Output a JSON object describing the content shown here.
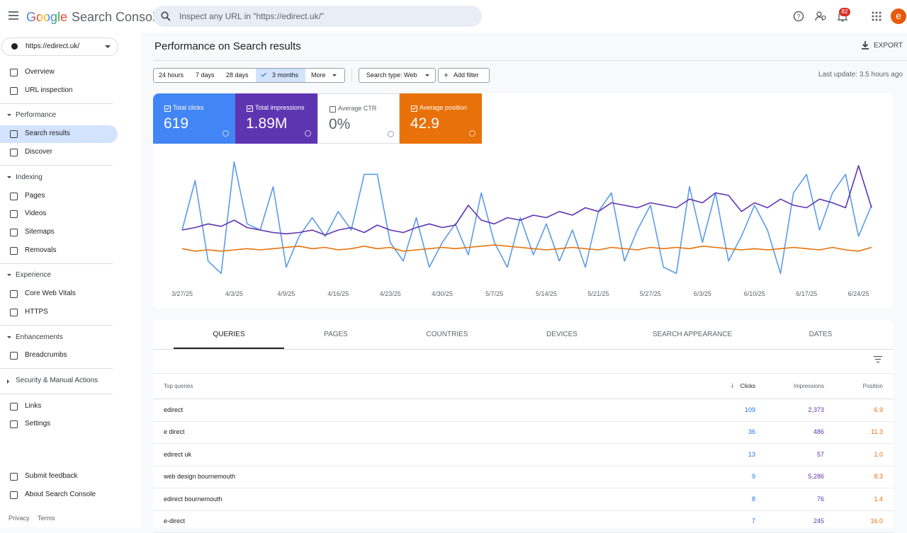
{
  "header": {
    "logo": "Google",
    "product": "Search Console",
    "search_placeholder": "Inspect any URL in \"https://edirect.uk/\"",
    "notification_count": "82",
    "avatar": "e"
  },
  "sidebar": {
    "property": "https://edirect.uk/",
    "items": [
      {
        "label": "Overview"
      },
      {
        "label": "URL inspection"
      },
      {
        "section": "Performance"
      },
      {
        "label": "Search results",
        "active": true
      },
      {
        "label": "Discover"
      },
      {
        "section": "Indexing"
      },
      {
        "label": "Pages"
      },
      {
        "label": "Videos"
      },
      {
        "label": "Sitemaps"
      },
      {
        "label": "Removals"
      },
      {
        "section": "Experience"
      },
      {
        "label": "Core Web Vitals"
      },
      {
        "label": "HTTPS"
      },
      {
        "section": "Enhancements"
      },
      {
        "label": "Breadcrumbs"
      },
      {
        "section": "Security & Manual Actions"
      },
      {
        "label": "Links"
      },
      {
        "label": "Settings"
      },
      {
        "label": "Submit feedback"
      },
      {
        "label": "About Search Console"
      }
    ],
    "footer": [
      "Privacy",
      "Terms"
    ]
  },
  "main": {
    "title": "Performance on Search results",
    "export": "EXPORT",
    "date_ranges": [
      "24 hours",
      "7 days",
      "28 days",
      "3 months",
      "More"
    ],
    "selected_range": 3,
    "filters": [
      "Search type: Web",
      "Add filter"
    ],
    "last_update": "Last update: 3.5 hours ago",
    "metrics": [
      {
        "label": "Total clicks",
        "value": "619",
        "color": "#4285f4",
        "checked": true
      },
      {
        "label": "Total impressions",
        "value": "1.89M",
        "color": "#5e35b1",
        "checked": true
      },
      {
        "label": "Average CTR",
        "value": "0%",
        "color": "#ffffff",
        "checked": false
      },
      {
        "label": "Average position",
        "value": "42.9",
        "color": "#e8710a",
        "checked": true
      }
    ],
    "tabs": [
      "QUERIES",
      "PAGES",
      "COUNTRIES",
      "DEVICES",
      "SEARCH APPEARANCE",
      "DATES"
    ],
    "table": {
      "columns": [
        "Top queries",
        "Clicks",
        "Impressions",
        "Position"
      ],
      "rows": [
        [
          "edirect",
          "109",
          "2,373",
          "6.9"
        ],
        [
          "e direct",
          "36",
          "486",
          "11.3"
        ],
        [
          "edirect uk",
          "13",
          "57",
          "1.0"
        ],
        [
          "web design bournemouth",
          "9",
          "5,286",
          "8.3"
        ],
        [
          "edirect bournemouth",
          "8",
          "76",
          "1.4"
        ],
        [
          "e-direct",
          "7",
          "245",
          "16.0"
        ]
      ]
    }
  },
  "chart_data": {
    "type": "line",
    "categories": [
      "3/27/25",
      null,
      null,
      null,
      "4/3/25",
      null,
      null,
      null,
      "4/9/25",
      null,
      null,
      null,
      "4/16/25",
      null,
      null,
      null,
      "4/23/25",
      null,
      null,
      null,
      "4/30/25",
      null,
      null,
      null,
      "5/7/25",
      null,
      null,
      null,
      "5/14/25",
      null,
      null,
      null,
      "5/21/25",
      null,
      null,
      null,
      "5/27/25",
      null,
      null,
      null,
      "6/3/25",
      null,
      null,
      null,
      "6/10/25",
      null,
      null,
      null,
      "6/17/25",
      null,
      null,
      null,
      "6/24/25",
      null
    ],
    "ylim": [
      0,
      100
    ],
    "series": [
      {
        "color": "#5b9be8",
        "values": [
          40,
          80,
          15,
          5,
          95,
          45,
          40,
          75,
          10,
          35,
          50,
          35,
          55,
          40,
          85,
          85,
          30,
          15,
          50,
          10,
          30,
          45,
          20,
          70,
          30,
          10,
          50,
          20,
          45,
          15,
          40,
          10,
          55,
          70,
          15,
          40,
          60,
          10,
          5,
          75,
          30,
          70,
          15,
          35,
          60,
          40,
          5,
          70,
          85,
          40,
          70,
          85,
          35,
          60
        ]
      },
      {
        "color": "#5e35b1",
        "values": [
          40,
          42,
          45,
          43,
          48,
          42,
          40,
          38,
          37,
          38,
          40,
          36,
          40,
          42,
          38,
          44,
          40,
          38,
          42,
          45,
          42,
          44,
          60,
          48,
          45,
          50,
          48,
          52,
          50,
          55,
          52,
          58,
          55,
          62,
          60,
          58,
          62,
          60,
          58,
          65,
          62,
          70,
          68,
          55,
          62,
          58,
          65,
          60,
          58,
          65,
          62,
          58,
          92,
          58
        ]
      },
      {
        "color": "#e8710a",
        "values": [
          25,
          23,
          24,
          23,
          24,
          25,
          24,
          25,
          26,
          27,
          25,
          26,
          24,
          25,
          27,
          25,
          26,
          23,
          24,
          25,
          26,
          25,
          26,
          27,
          28,
          27,
          26,
          25,
          24,
          25,
          26,
          25,
          24,
          26,
          25,
          24,
          26,
          25,
          26,
          25,
          27,
          26,
          25,
          24,
          25,
          24,
          25,
          26,
          25,
          24,
          26,
          24,
          23,
          26
        ]
      }
    ]
  }
}
